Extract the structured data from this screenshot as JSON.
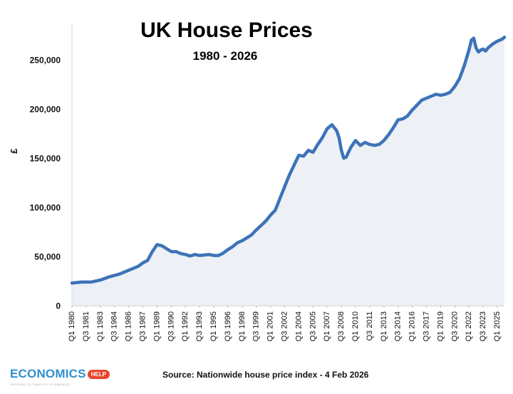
{
  "chart_data": {
    "type": "area",
    "title": "UK House Prices",
    "subtitle": "1980 - 2026",
    "ylabel": "£",
    "xlabel": "",
    "ylim": [
      0,
      280000
    ],
    "yticks": [
      0,
      50000,
      100000,
      150000,
      200000,
      250000
    ],
    "ytick_labels": [
      "0",
      "50,000",
      "100,000",
      "150,000",
      "200,000",
      "250,000"
    ],
    "xtick_labels": [
      "Q1 1980",
      "Q3 1981",
      "Q1 1983",
      "Q3 1984",
      "Q1 1986",
      "Q3 1987",
      "Q1 1989",
      "Q3 1990",
      "Q1 1992",
      "Q3 1993",
      "Q1 1995",
      "Q3 1996",
      "Q1 1998",
      "Q3 1999",
      "Q1 2001",
      "Q3 2002",
      "Q1 2004",
      "Q3 2005",
      "Q1 2007",
      "Q3 2008",
      "Q1 2010",
      "Q3 2011",
      "Q1 2013",
      "Q3 2014",
      "Q1 2016",
      "Q3 2017",
      "Q1 2019",
      "Q3 2020",
      "Q1 2022",
      "Q3 2023",
      "Q1 2025"
    ],
    "grid": false,
    "legend": "none",
    "series_color": "#3d73b8",
    "fill_color": "#e8edf4",
    "series": [
      {
        "x": [
          1980.0,
          1981.0,
          1982.0,
          1983.0,
          1984.0,
          1985.0,
          1986.0,
          1987.0,
          1987.5,
          1988.0,
          1988.5,
          1989.0,
          1989.5,
          1990.0,
          1990.5,
          1991.0,
          1991.5,
          1992.0,
          1992.5,
          1993.0,
          1993.5,
          1994.0,
          1994.5,
          1995.0,
          1995.5,
          1996.0,
          1996.5,
          1997.0,
          1997.5,
          1998.0,
          1998.5,
          1999.0,
          1999.5,
          2000.0,
          2000.5,
          2001.0,
          2001.5,
          2002.0,
          2002.5,
          2003.0,
          2003.5,
          2004.0,
          2004.5,
          2005.0,
          2005.5,
          2006.0,
          2006.5,
          2007.0,
          2007.5,
          2008.0,
          2008.25,
          2008.5,
          2008.75,
          2009.0,
          2009.5,
          2010.0,
          2010.5,
          2011.0,
          2011.5,
          2012.0,
          2012.5,
          2013.0,
          2013.5,
          2014.0,
          2014.5,
          2015.0,
          2015.5,
          2016.0,
          2016.5,
          2017.0,
          2017.5,
          2018.0,
          2018.5,
          2019.0,
          2019.5,
          2020.0,
          2020.5,
          2021.0,
          2021.5,
          2022.0,
          2022.25,
          2022.5,
          2022.75,
          2023.0,
          2023.25,
          2023.5,
          2023.75,
          2024.0,
          2024.5,
          2025.0,
          2025.5,
          2025.75
        ],
        "y": [
          23000,
          24000,
          24000,
          26000,
          29500,
          32000,
          36000,
          40000,
          43500,
          46000,
          55000,
          62000,
          61000,
          58000,
          55000,
          55000,
          53000,
          52000,
          50500,
          52000,
          51000,
          51500,
          52000,
          51000,
          51000,
          53500,
          57000,
          60000,
          64000,
          66000,
          69000,
          72000,
          77000,
          81500,
          86000,
          92000,
          97000,
          109000,
          121000,
          133000,
          143000,
          153000,
          152000,
          158000,
          156000,
          164000,
          171000,
          180000,
          184000,
          178000,
          171000,
          158000,
          150000,
          151000,
          161000,
          168000,
          163000,
          166000,
          164000,
          163000,
          164000,
          168000,
          174000,
          181000,
          189000,
          190000,
          193000,
          199000,
          204000,
          209000,
          211000,
          213000,
          215000,
          214000,
          215000,
          217000,
          223000,
          231000,
          244000,
          260000,
          270000,
          272000,
          262000,
          258000,
          260000,
          261000,
          259000,
          262000,
          266000,
          269000,
          271000,
          273000
        ]
      }
    ]
  },
  "footer": {
    "logo_word": "ECONOMICS",
    "logo_badge": "HELP",
    "logo_tag": "HELPING TO SIMPLIFY ECONOMICS",
    "source": "Source: Nationwide house price index - 4 Feb 2026"
  }
}
